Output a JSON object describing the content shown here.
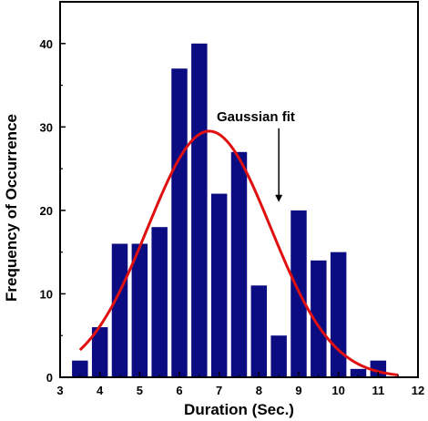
{
  "chart_data": {
    "type": "bar",
    "xlabel": "Duration (Sec.)",
    "ylabel": "Frequency of Occurrence",
    "xlim": [
      3,
      12
    ],
    "ylim": [
      0,
      45
    ],
    "x_ticks": [
      "3",
      "4",
      "5",
      "6",
      "7",
      "8",
      "9",
      "10",
      "11",
      "12"
    ],
    "y_ticks": [
      "0",
      "10",
      "20",
      "30",
      "40"
    ],
    "bar_color": "#0c0c82",
    "bar_width": 0.4,
    "bars": [
      {
        "x": 3.5,
        "value": 2
      },
      {
        "x": 4.0,
        "value": 6
      },
      {
        "x": 4.5,
        "value": 16
      },
      {
        "x": 5.0,
        "value": 16
      },
      {
        "x": 5.5,
        "value": 18
      },
      {
        "x": 6.0,
        "value": 37
      },
      {
        "x": 6.5,
        "value": 40
      },
      {
        "x": 7.0,
        "value": 22
      },
      {
        "x": 7.5,
        "value": 27
      },
      {
        "x": 8.0,
        "value": 11
      },
      {
        "x": 8.5,
        "value": 5
      },
      {
        "x": 9.0,
        "value": 20
      },
      {
        "x": 9.5,
        "value": 14
      },
      {
        "x": 10.0,
        "value": 15
      },
      {
        "x": 10.5,
        "value": 1
      },
      {
        "x": 11.0,
        "value": 2
      }
    ],
    "fit": {
      "label": "Gaussian fit",
      "color": "#e01010",
      "x_range": [
        3.5,
        11.5
      ],
      "amplitude": 29.5,
      "mean": 6.75,
      "sigma": 1.55
    },
    "annotation": {
      "text": "Gaussian fit",
      "arrow_x": 8.5,
      "arrow_from_y": 30.5,
      "arrow_to_y": 21
    }
  }
}
